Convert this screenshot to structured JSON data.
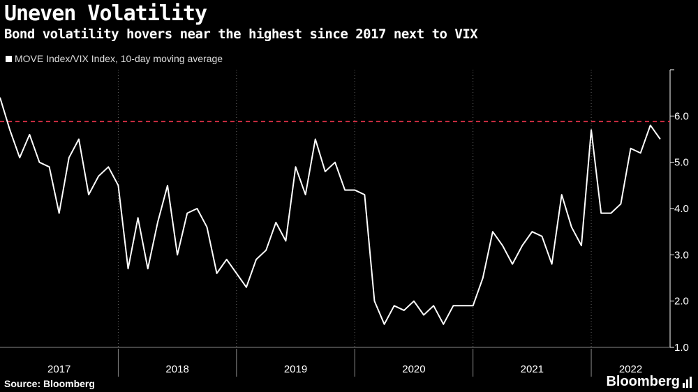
{
  "title": "Uneven Volatility",
  "subtitle": "Bond volatility hovers near the highest since 2017 next to VIX",
  "legend_label": "MOVE Index/VIX Index, 10-day moving average",
  "source": "Source: Bloomberg",
  "brand": "Bloomberg",
  "colors": {
    "line": "#ffffff",
    "reference": "#e8334a",
    "grid": "#666666"
  },
  "chart_data": {
    "type": "line",
    "title": "Uneven Volatility",
    "subtitle": "Bond volatility hovers near the highest since 2017 next to VIX",
    "ylim": [
      1.0,
      7.0
    ],
    "xlim": [
      "2017-01",
      "2022-09"
    ],
    "y_ticks": [
      "1.0",
      "2.0",
      "3.0",
      "4.0",
      "5.0",
      "6.0"
    ],
    "x_ticks": [
      "2017",
      "2018",
      "2019",
      "2020",
      "2021",
      "2022"
    ],
    "grid": "vertical dotted",
    "reference_line": {
      "y": 5.88,
      "style": "dashed",
      "color": "#e8334a"
    },
    "series": [
      {
        "name": "MOVE Index/VIX Index, 10-day moving average",
        "x": [
          "2017-01",
          "2017-02",
          "2017-03",
          "2017-04",
          "2017-05",
          "2017-06",
          "2017-07",
          "2017-08",
          "2017-09",
          "2017-10",
          "2017-11",
          "2017-12",
          "2018-01",
          "2018-02",
          "2018-03",
          "2018-04",
          "2018-05",
          "2018-06",
          "2018-07",
          "2018-08",
          "2018-09",
          "2018-10",
          "2018-11",
          "2018-12",
          "2019-01",
          "2019-02",
          "2019-03",
          "2019-04",
          "2019-05",
          "2019-06",
          "2019-07",
          "2019-08",
          "2019-09",
          "2019-10",
          "2019-11",
          "2019-12",
          "2020-01",
          "2020-02",
          "2020-03",
          "2020-04",
          "2020-05",
          "2020-06",
          "2020-07",
          "2020-08",
          "2020-09",
          "2020-10",
          "2020-11",
          "2020-12",
          "2021-01",
          "2021-02",
          "2021-03",
          "2021-04",
          "2021-05",
          "2021-06",
          "2021-07",
          "2021-08",
          "2021-09",
          "2021-10",
          "2021-11",
          "2021-12",
          "2022-01",
          "2022-02",
          "2022-03",
          "2022-04",
          "2022-05",
          "2022-06",
          "2022-07",
          "2022-08"
        ],
        "values": [
          6.4,
          5.7,
          5.1,
          5.6,
          5.0,
          4.9,
          3.9,
          5.1,
          5.5,
          4.3,
          4.7,
          4.9,
          4.5,
          2.7,
          3.8,
          2.7,
          3.7,
          4.5,
          3.0,
          3.9,
          4.0,
          3.6,
          2.6,
          2.9,
          2.6,
          2.3,
          2.9,
          3.1,
          3.7,
          3.3,
          4.9,
          4.3,
          5.5,
          4.8,
          5.0,
          4.4,
          4.4,
          4.3,
          2.0,
          1.5,
          1.9,
          1.8,
          2.0,
          1.7,
          1.9,
          1.5,
          1.9,
          1.9,
          1.9,
          2.5,
          3.5,
          3.2,
          2.8,
          3.2,
          3.5,
          3.4,
          2.8,
          4.3,
          3.6,
          3.2,
          5.7,
          3.9,
          3.9,
          4.1,
          5.3,
          5.2,
          5.8,
          5.5
        ]
      }
    ]
  }
}
